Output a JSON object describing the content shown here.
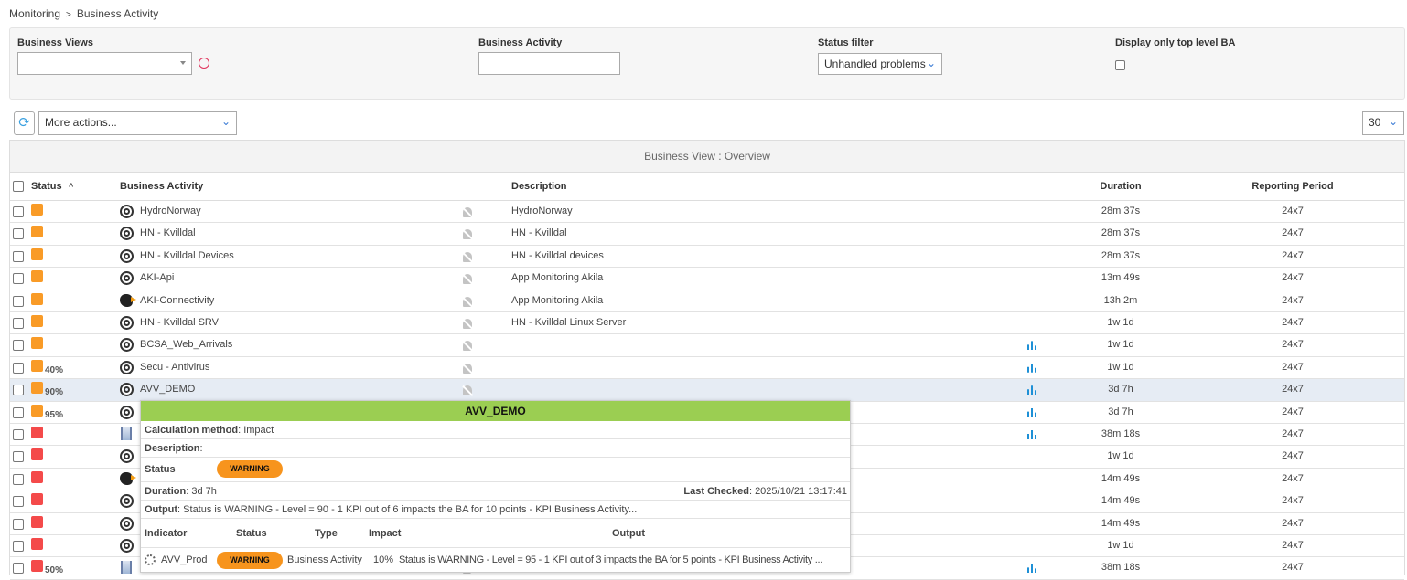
{
  "breadcrumb": {
    "root": "Monitoring",
    "separator": ">",
    "current": "Business Activity"
  },
  "filters": {
    "business_views_label": "Business Views",
    "business_views_value": "",
    "business_activity_label": "Business Activity",
    "business_activity_value": "",
    "status_filter_label": "Status filter",
    "status_filter_value": "Unhandled problems",
    "top_level_label": "Display only top level BA",
    "top_level_checked": false
  },
  "toolbar": {
    "more_actions": "More actions...",
    "page_size": "30"
  },
  "table": {
    "title": "Business View : Overview",
    "headers": {
      "status": "Status",
      "sort": "^",
      "business_activity": "Business Activity",
      "description": "Description",
      "duration": "Duration",
      "reporting_period": "Reporting Period"
    },
    "rows": [
      {
        "status": "warning",
        "pct": "",
        "icon": "target",
        "name": "HydroNorway",
        "desc": "HydroNorway",
        "chart": false,
        "duration": "28m 37s",
        "period": "24x7"
      },
      {
        "status": "warning",
        "pct": "",
        "icon": "target",
        "name": "HN - Kvilldal",
        "desc": "HN - Kvilldal",
        "chart": false,
        "duration": "28m 37s",
        "period": "24x7"
      },
      {
        "status": "warning",
        "pct": "",
        "icon": "target",
        "name": "HN - Kvilldal Devices",
        "desc": "HN - Kvilldal devices",
        "chart": false,
        "duration": "28m 37s",
        "period": "24x7"
      },
      {
        "status": "warning",
        "pct": "",
        "icon": "target",
        "name": "AKI-Api",
        "desc": "App Monitoring Akila",
        "chart": false,
        "duration": "13m 49s",
        "period": "24x7"
      },
      {
        "status": "warning",
        "pct": "",
        "icon": "bird",
        "name": "AKI-Connectivity",
        "desc": "App Monitoring Akila",
        "chart": false,
        "duration": "13h 2m",
        "period": "24x7"
      },
      {
        "status": "warning",
        "pct": "",
        "icon": "target",
        "name": "HN - Kvilldal SRV",
        "desc": "HN - Kvilldal Linux Server",
        "chart": false,
        "duration": "1w 1d",
        "period": "24x7"
      },
      {
        "status": "warning",
        "pct": "",
        "icon": "target",
        "name": "BCSA_Web_Arrivals",
        "desc": "",
        "chart": true,
        "duration": "1w 1d",
        "period": "24x7"
      },
      {
        "status": "warning",
        "pct": "40%",
        "icon": "target",
        "name": "Secu - Antivirus",
        "desc": "",
        "chart": true,
        "duration": "1w 1d",
        "period": "24x7"
      },
      {
        "status": "warning",
        "pct": "90%",
        "icon": "target",
        "name": "AVV_DEMO",
        "desc": "",
        "chart": true,
        "duration": "3d 7h",
        "period": "24x7"
      },
      {
        "status": "warning",
        "pct": "95%",
        "icon": "target",
        "name": "",
        "desc": "",
        "chart": true,
        "duration": "3d 7h",
        "period": "24x7"
      },
      {
        "status": "critical",
        "pct": "",
        "icon": "graph",
        "name": "",
        "desc": "",
        "chart": true,
        "duration": "38m 18s",
        "period": "24x7"
      },
      {
        "status": "critical",
        "pct": "",
        "icon": "target",
        "name": "",
        "desc": "",
        "chart": false,
        "duration": "1w 1d",
        "period": "24x7"
      },
      {
        "status": "critical",
        "pct": "",
        "icon": "bird",
        "name": "",
        "desc": "",
        "chart": false,
        "duration": "14m 49s",
        "period": "24x7"
      },
      {
        "status": "critical",
        "pct": "",
        "icon": "target",
        "name": "",
        "desc": "",
        "chart": false,
        "duration": "14m 49s",
        "period": "24x7"
      },
      {
        "status": "critical",
        "pct": "",
        "icon": "target",
        "name": "",
        "desc": "",
        "chart": false,
        "duration": "14m 49s",
        "period": "24x7"
      },
      {
        "status": "critical",
        "pct": "",
        "icon": "target",
        "name": "",
        "desc": "",
        "chart": false,
        "duration": "1w 1d",
        "period": "24x7"
      },
      {
        "status": "critical",
        "pct": "50%",
        "icon": "graph",
        "name": "",
        "desc": "",
        "chart": true,
        "duration": "38m 18s",
        "period": "24x7"
      }
    ]
  },
  "colors": {
    "warning": "#f99b27",
    "critical": "#f44a4a",
    "tooltip_header": "#9bce52",
    "accent": "#3a7bd5"
  },
  "tooltip": {
    "title": "AVV_DEMO",
    "calc_label": "Calculation method",
    "calc_value": "Impact",
    "desc_label": "Description",
    "desc_value": "",
    "status_label": "Status",
    "status_value": "WARNING",
    "duration_label": "Duration",
    "duration_value": "3d 7h",
    "last_checked_label": "Last Checked",
    "last_checked_value": "2025/10/21 13:17:41",
    "output_label": "Output",
    "output_value": "Status is WARNING - Level = 90 - 1 KPI out of 6 impacts the BA for 10 points - KPI Business Activity...",
    "headers": {
      "indicator": "Indicator",
      "status": "Status",
      "type": "Type",
      "impact": "Impact",
      "output": "Output"
    },
    "indicator": {
      "name": "AVV_Prod",
      "status": "WARNING",
      "type": "Business Activity",
      "impact": "10%",
      "output": "Status is WARNING - Level = 95 - 1 KPI out of 3 impacts the BA for 5 points - KPI Business Activity ..."
    }
  }
}
